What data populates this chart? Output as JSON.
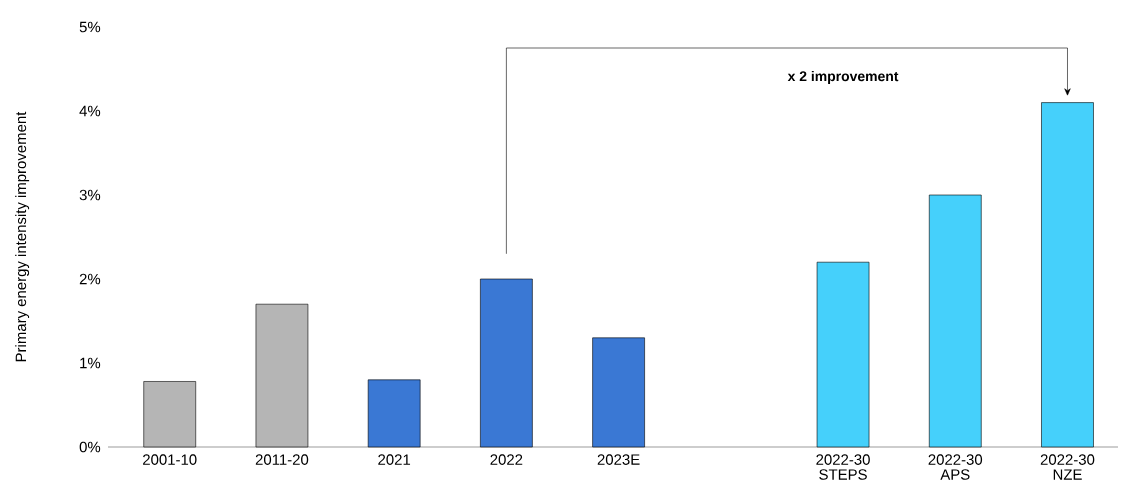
{
  "chart_data": {
    "type": "bar",
    "ylabel": "Primary energy intensity improvement",
    "categories": [
      "2001-10",
      "2011-20",
      "2021",
      "2022",
      "2023E",
      null,
      "2022-30 STEPS",
      "2022-30 APS",
      "2022-30 NZE"
    ],
    "values": [
      0.78,
      1.7,
      0.8,
      2.0,
      1.3,
      null,
      2.2,
      3.0,
      4.1
    ],
    "colors": [
      "#b5b5b5",
      "#b5b5b5",
      "#3a78d4",
      "#3a78d4",
      "#3a78d4",
      null,
      "#45d0fb",
      "#45d0fb",
      "#45d0fb"
    ],
    "ylim": [
      0,
      5
    ],
    "yticks": [
      {
        "value": 0,
        "label": "0%"
      },
      {
        "value": 1,
        "label": "1%"
      },
      {
        "value": 2,
        "label": "2%"
      },
      {
        "value": 3,
        "label": "3%"
      },
      {
        "value": 4,
        "label": "4%"
      },
      {
        "value": 5,
        "label": "5%"
      }
    ],
    "annotations": [
      "x 2 improvement"
    ]
  }
}
